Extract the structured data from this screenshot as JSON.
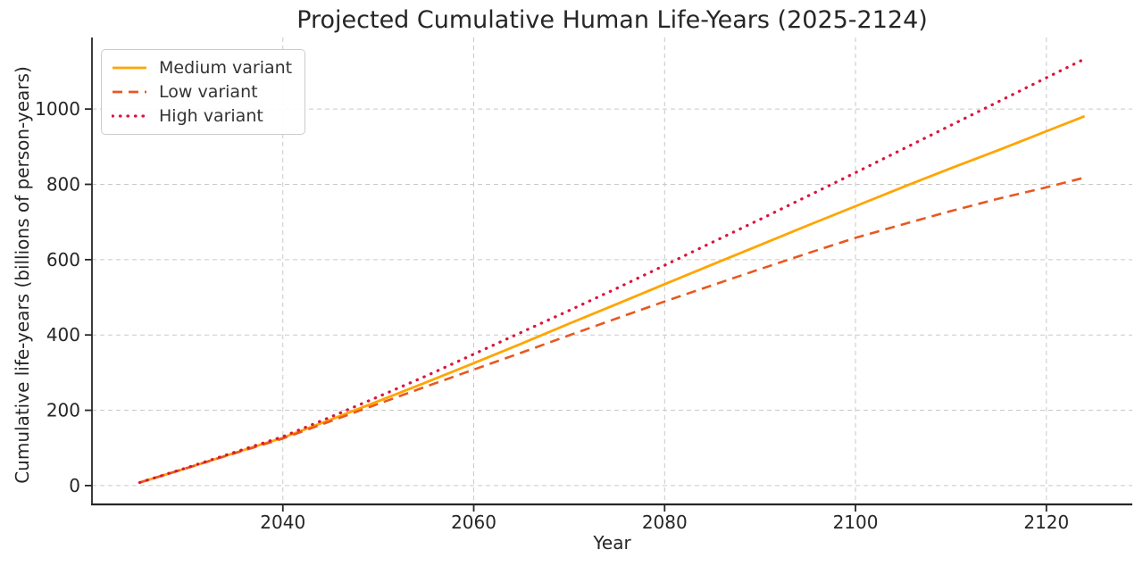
{
  "figure": {
    "title": "Projected Cumulative Human Life-Years (2025-2124)",
    "xlabel": "Year",
    "ylabel": "Cumulative life-years (billions of person-years)"
  },
  "chart_data": {
    "type": "line",
    "title": "Projected Cumulative Human Life-Years (2025-2124)",
    "xlabel": "Year",
    "ylabel": "Cumulative life-years (billions of person-years)",
    "x": [
      2025,
      2030,
      2035,
      2040,
      2045,
      2050,
      2055,
      2060,
      2065,
      2070,
      2075,
      2080,
      2085,
      2090,
      2095,
      2100,
      2105,
      2110,
      2115,
      2120,
      2124
    ],
    "series": [
      {
        "name": "Medium variant",
        "color": "#FFA500",
        "line_style": "solid",
        "values": [
          8,
          47,
          87,
          127,
          175,
          224,
          274,
          325,
          377,
          430,
          482,
          535,
          587,
          639,
          691,
          742,
          793,
          843,
          891,
          941,
          981
        ]
      },
      {
        "name": "Low variant",
        "color": "#E8581F",
        "line_style": "dashed",
        "values": [
          8,
          47,
          86,
          125,
          171,
          217,
          263,
          308,
          353,
          399,
          444,
          489,
          532,
          575,
          617,
          658,
          694,
          729,
          762,
          792,
          818
        ]
      },
      {
        "name": "High variant",
        "color": "#DC143C",
        "line_style": "dotted",
        "values": [
          8,
          48,
          89,
          130,
          182,
          236,
          291,
          349,
          407,
          465,
          524,
          585,
          646,
          707,
          769,
          831,
          894,
          957,
          1020,
          1083,
          1133
        ]
      }
    ],
    "x_ticks": [
      2040,
      2060,
      2080,
      2100,
      2120
    ],
    "y_ticks": [
      0,
      200,
      400,
      600,
      800,
      1000
    ],
    "xlim": [
      2020,
      2129
    ],
    "ylim": [
      -50,
      1190
    ],
    "grid": true,
    "legend_position": "upper left"
  },
  "colors": {
    "axis": "#262626",
    "grid": "#c9c9c9",
    "text": "#262626",
    "legend_border": "#cccccc"
  }
}
